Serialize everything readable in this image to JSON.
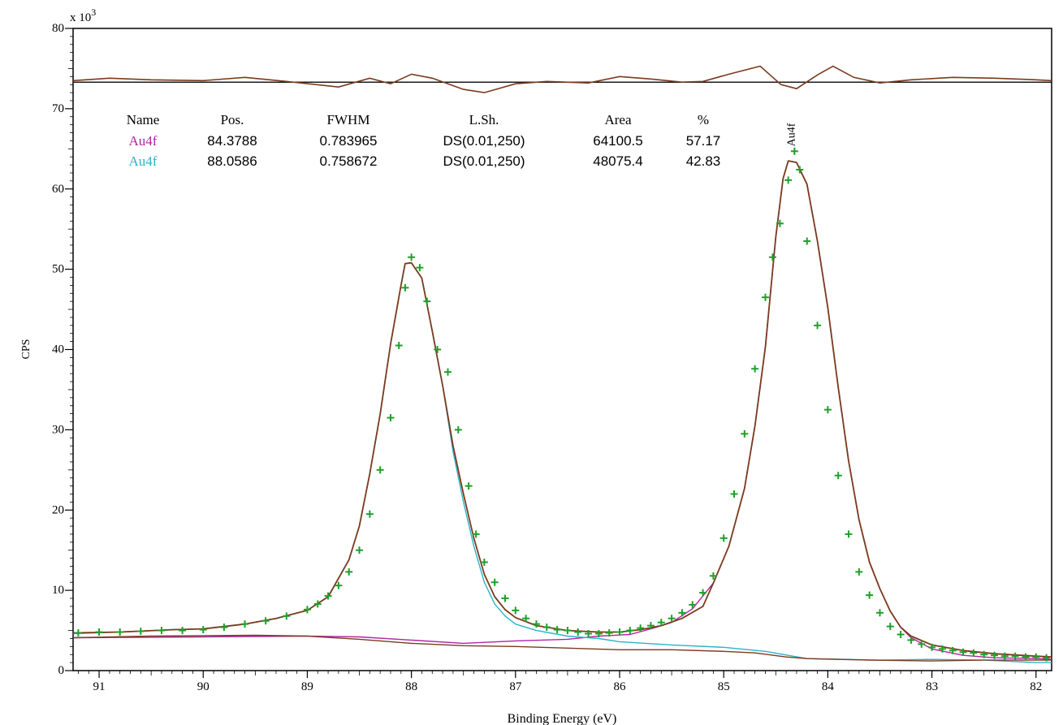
{
  "chart_data": {
    "type": "line",
    "title": "",
    "xlabel": "Binding Energy (eV)",
    "ylabel": "CPS",
    "y_multiplier_label": "x 10",
    "y_multiplier_exp": "3",
    "xlim": [
      91.25,
      81.85
    ],
    "ylim": [
      0,
      80
    ],
    "x_reversed": true,
    "x_ticks": [
      91,
      90,
      89,
      88,
      87,
      86,
      85,
      84,
      83,
      82
    ],
    "y_ticks": [
      0,
      10,
      20,
      30,
      40,
      50,
      60,
      70,
      80
    ],
    "grid": false,
    "peak_label": "Au4f",
    "peak_label_x": 84.35,
    "table": {
      "headers": [
        "Name",
        "Pos.",
        "FWHM",
        "L.Sh.",
        "Area",
        "%"
      ],
      "rows": [
        {
          "cells": [
            "Au4f",
            "84.3788",
            "0.783965",
            "DS(0.01,250)",
            "64100.5",
            "57.17"
          ],
          "color": "#b0259f"
        },
        {
          "cells": [
            "Au4f",
            "88.0586",
            "0.758672",
            "DS(0.01,250)",
            "48075.4",
            "42.83"
          ],
          "color": "#2bb3c9"
        }
      ]
    },
    "residual": {
      "baseline": 73.3,
      "color": "#7a3b1e",
      "points": [
        [
          91.25,
          73.5
        ],
        [
          90.9,
          73.8
        ],
        [
          90.5,
          73.6
        ],
        [
          90.0,
          73.5
        ],
        [
          89.6,
          73.9
        ],
        [
          89.2,
          73.4
        ],
        [
          88.7,
          72.7
        ],
        [
          88.4,
          73.8
        ],
        [
          88.2,
          73.1
        ],
        [
          88.0,
          74.3
        ],
        [
          87.8,
          73.8
        ],
        [
          87.5,
          72.4
        ],
        [
          87.3,
          72.0
        ],
        [
          87.0,
          73.1
        ],
        [
          86.7,
          73.4
        ],
        [
          86.3,
          73.2
        ],
        [
          86.0,
          74.0
        ],
        [
          85.7,
          73.7
        ],
        [
          85.4,
          73.3
        ],
        [
          85.2,
          73.4
        ],
        [
          84.95,
          74.3
        ],
        [
          84.65,
          75.3
        ],
        [
          84.45,
          73.0
        ],
        [
          84.3,
          72.5
        ],
        [
          84.1,
          74.2
        ],
        [
          83.95,
          75.3
        ],
        [
          83.75,
          73.9
        ],
        [
          83.5,
          73.2
        ],
        [
          83.2,
          73.6
        ],
        [
          82.8,
          73.9
        ],
        [
          82.4,
          73.8
        ],
        [
          82.0,
          73.6
        ],
        [
          81.85,
          73.5
        ]
      ]
    },
    "series": [
      {
        "name": "Au4f",
        "color": "#b0259f",
        "points": [
          [
            91.25,
            4.1
          ],
          [
            90.0,
            4.2
          ],
          [
            89.0,
            4.3
          ],
          [
            88.5,
            4.2
          ],
          [
            88.0,
            3.8
          ],
          [
            87.5,
            3.4
          ],
          [
            87.0,
            3.7
          ],
          [
            86.5,
            3.9
          ],
          [
            86.2,
            4.3
          ],
          [
            85.9,
            4.5
          ],
          [
            85.7,
            5.2
          ],
          [
            85.5,
            6.0
          ],
          [
            85.3,
            7.7
          ],
          [
            85.1,
            10.9
          ],
          [
            84.95,
            15.5
          ],
          [
            84.8,
            22.7
          ],
          [
            84.7,
            30.5
          ],
          [
            84.6,
            40.3
          ],
          [
            84.5,
            54.0
          ],
          [
            84.43,
            61.3
          ],
          [
            84.38,
            63.5
          ],
          [
            84.3,
            63.3
          ],
          [
            84.2,
            60.6
          ],
          [
            84.1,
            53.5
          ],
          [
            84.0,
            45.2
          ],
          [
            83.9,
            35.3
          ],
          [
            83.8,
            26.1
          ],
          [
            83.7,
            18.8
          ],
          [
            83.6,
            13.5
          ],
          [
            83.5,
            10.2
          ],
          [
            83.4,
            7.4
          ],
          [
            83.3,
            5.4
          ],
          [
            83.2,
            4.1
          ],
          [
            83.0,
            2.7
          ],
          [
            82.7,
            1.9
          ],
          [
            82.4,
            1.6
          ],
          [
            82.0,
            1.5
          ],
          [
            81.85,
            1.4
          ]
        ]
      },
      {
        "name": "Au4f",
        "color": "#2bb3c9",
        "points": [
          [
            91.25,
            4.6
          ],
          [
            90.8,
            4.8
          ],
          [
            90.3,
            5.1
          ],
          [
            90.0,
            5.2
          ],
          [
            89.6,
            5.8
          ],
          [
            89.3,
            6.5
          ],
          [
            89.0,
            7.5
          ],
          [
            88.8,
            9.2
          ],
          [
            88.6,
            13.8
          ],
          [
            88.5,
            18.0
          ],
          [
            88.4,
            24.5
          ],
          [
            88.3,
            32.0
          ],
          [
            88.2,
            40.7
          ],
          [
            88.1,
            48.0
          ],
          [
            88.06,
            50.7
          ],
          [
            88.0,
            50.8
          ],
          [
            87.9,
            48.9
          ],
          [
            87.8,
            42.3
          ],
          [
            87.7,
            35.5
          ],
          [
            87.6,
            27.3
          ],
          [
            87.5,
            21.0
          ],
          [
            87.4,
            15.5
          ],
          [
            87.3,
            11.0
          ],
          [
            87.2,
            8.3
          ],
          [
            87.1,
            6.8
          ],
          [
            87.0,
            5.8
          ],
          [
            86.8,
            5.0
          ],
          [
            86.5,
            4.3
          ],
          [
            86.2,
            4.0
          ],
          [
            86.0,
            3.6
          ],
          [
            85.5,
            3.2
          ],
          [
            85.0,
            2.9
          ],
          [
            84.6,
            2.4
          ],
          [
            84.2,
            1.5
          ],
          [
            83.5,
            1.3
          ],
          [
            83.0,
            1.4
          ],
          [
            82.5,
            1.3
          ],
          [
            82.0,
            1.0
          ],
          [
            81.85,
            1.0
          ]
        ]
      },
      {
        "name": "",
        "color": "#7a3b1e",
        "role": "background",
        "points": [
          [
            91.25,
            4.1
          ],
          [
            90.5,
            4.3
          ],
          [
            89.5,
            4.4
          ],
          [
            89.0,
            4.3
          ],
          [
            88.5,
            3.9
          ],
          [
            88.0,
            3.4
          ],
          [
            87.5,
            3.1
          ],
          [
            87.0,
            3.0
          ],
          [
            86.5,
            2.8
          ],
          [
            86.0,
            2.6
          ],
          [
            85.5,
            2.6
          ],
          [
            85.0,
            2.4
          ],
          [
            84.7,
            2.2
          ],
          [
            84.4,
            1.7
          ],
          [
            84.2,
            1.5
          ],
          [
            83.6,
            1.3
          ],
          [
            83.0,
            1.2
          ],
          [
            82.5,
            1.3
          ],
          [
            82.0,
            1.3
          ],
          [
            81.85,
            1.3
          ]
        ]
      },
      {
        "name": "",
        "color": "#7a3b1e",
        "role": "envelope",
        "points": [
          [
            91.25,
            4.7
          ],
          [
            90.8,
            4.8
          ],
          [
            90.3,
            5.1
          ],
          [
            90.0,
            5.2
          ],
          [
            89.6,
            5.8
          ],
          [
            89.3,
            6.5
          ],
          [
            89.0,
            7.5
          ],
          [
            88.8,
            9.2
          ],
          [
            88.6,
            13.8
          ],
          [
            88.5,
            18.0
          ],
          [
            88.4,
            24.5
          ],
          [
            88.3,
            32.0
          ],
          [
            88.2,
            40.7
          ],
          [
            88.1,
            48.0
          ],
          [
            88.06,
            50.7
          ],
          [
            88.0,
            50.8
          ],
          [
            87.9,
            48.9
          ],
          [
            87.8,
            42.3
          ],
          [
            87.7,
            35.5
          ],
          [
            87.6,
            28.0
          ],
          [
            87.5,
            22.0
          ],
          [
            87.4,
            16.5
          ],
          [
            87.3,
            12.0
          ],
          [
            87.2,
            9.2
          ],
          [
            87.1,
            7.6
          ],
          [
            87.0,
            6.6
          ],
          [
            86.8,
            5.6
          ],
          [
            86.5,
            5.0
          ],
          [
            86.2,
            4.8
          ],
          [
            86.0,
            4.8
          ],
          [
            85.8,
            5.1
          ],
          [
            85.6,
            5.6
          ],
          [
            85.4,
            6.5
          ],
          [
            85.2,
            8.0
          ],
          [
            85.1,
            10.9
          ],
          [
            84.95,
            15.5
          ],
          [
            84.8,
            22.7
          ],
          [
            84.7,
            30.5
          ],
          [
            84.6,
            40.3
          ],
          [
            84.5,
            54.0
          ],
          [
            84.43,
            61.3
          ],
          [
            84.38,
            63.5
          ],
          [
            84.3,
            63.3
          ],
          [
            84.2,
            60.6
          ],
          [
            84.1,
            53.5
          ],
          [
            84.0,
            45.2
          ],
          [
            83.9,
            35.3
          ],
          [
            83.8,
            26.1
          ],
          [
            83.7,
            18.8
          ],
          [
            83.6,
            13.5
          ],
          [
            83.5,
            10.2
          ],
          [
            83.4,
            7.4
          ],
          [
            83.3,
            5.4
          ],
          [
            83.2,
            4.3
          ],
          [
            83.0,
            3.2
          ],
          [
            82.7,
            2.5
          ],
          [
            82.4,
            2.1
          ],
          [
            82.0,
            1.8
          ],
          [
            81.85,
            1.7
          ]
        ]
      },
      {
        "name": "",
        "color": "#1fa02a",
        "role": "measured",
        "marker": "+",
        "points": [
          [
            91.2,
            4.7
          ],
          [
            91.0,
            4.8
          ],
          [
            90.8,
            4.8
          ],
          [
            90.6,
            4.9
          ],
          [
            90.4,
            5.0
          ],
          [
            90.2,
            5.0
          ],
          [
            90.0,
            5.1
          ],
          [
            89.8,
            5.4
          ],
          [
            89.6,
            5.8
          ],
          [
            89.4,
            6.2
          ],
          [
            89.2,
            6.8
          ],
          [
            89.0,
            7.6
          ],
          [
            88.9,
            8.3
          ],
          [
            88.8,
            9.3
          ],
          [
            88.7,
            10.6
          ],
          [
            88.6,
            12.3
          ],
          [
            88.5,
            15.0
          ],
          [
            88.4,
            19.5
          ],
          [
            88.3,
            25.0
          ],
          [
            88.2,
            31.5
          ],
          [
            88.12,
            40.5
          ],
          [
            88.06,
            47.7
          ],
          [
            88.0,
            51.5
          ],
          [
            87.92,
            50.2
          ],
          [
            87.85,
            46.0
          ],
          [
            87.75,
            40.0
          ],
          [
            87.65,
            37.2
          ],
          [
            87.55,
            30.0
          ],
          [
            87.45,
            23.0
          ],
          [
            87.38,
            17.0
          ],
          [
            87.3,
            13.5
          ],
          [
            87.2,
            11.0
          ],
          [
            87.1,
            9.0
          ],
          [
            87.0,
            7.5
          ],
          [
            86.9,
            6.5
          ],
          [
            86.8,
            5.8
          ],
          [
            86.7,
            5.4
          ],
          [
            86.6,
            5.1
          ],
          [
            86.5,
            5.0
          ],
          [
            86.4,
            4.8
          ],
          [
            86.3,
            4.6
          ],
          [
            86.2,
            4.6
          ],
          [
            86.1,
            4.7
          ],
          [
            86.0,
            4.8
          ],
          [
            85.9,
            5.0
          ],
          [
            85.8,
            5.3
          ],
          [
            85.7,
            5.6
          ],
          [
            85.6,
            6.0
          ],
          [
            85.5,
            6.5
          ],
          [
            85.4,
            7.2
          ],
          [
            85.3,
            8.2
          ],
          [
            85.2,
            9.7
          ],
          [
            85.1,
            11.8
          ],
          [
            85.0,
            16.5
          ],
          [
            84.9,
            22.0
          ],
          [
            84.8,
            29.5
          ],
          [
            84.7,
            37.6
          ],
          [
            84.6,
            46.5
          ],
          [
            84.53,
            51.5
          ],
          [
            84.46,
            55.7
          ],
          [
            84.38,
            61.1
          ],
          [
            84.32,
            64.7
          ],
          [
            84.27,
            62.4
          ],
          [
            84.2,
            53.5
          ],
          [
            84.1,
            43.0
          ],
          [
            84.0,
            32.5
          ],
          [
            83.9,
            24.3
          ],
          [
            83.8,
            17.0
          ],
          [
            83.7,
            12.3
          ],
          [
            83.6,
            9.4
          ],
          [
            83.5,
            7.2
          ],
          [
            83.4,
            5.5
          ],
          [
            83.3,
            4.5
          ],
          [
            83.2,
            3.8
          ],
          [
            83.1,
            3.3
          ],
          [
            83.0,
            2.9
          ],
          [
            82.9,
            2.7
          ],
          [
            82.8,
            2.5
          ],
          [
            82.7,
            2.3
          ],
          [
            82.6,
            2.2
          ],
          [
            82.5,
            2.0
          ],
          [
            82.4,
            1.9
          ],
          [
            82.3,
            1.8
          ],
          [
            82.2,
            1.8
          ],
          [
            82.1,
            1.7
          ],
          [
            82.0,
            1.7
          ],
          [
            81.9,
            1.6
          ]
        ]
      }
    ]
  }
}
